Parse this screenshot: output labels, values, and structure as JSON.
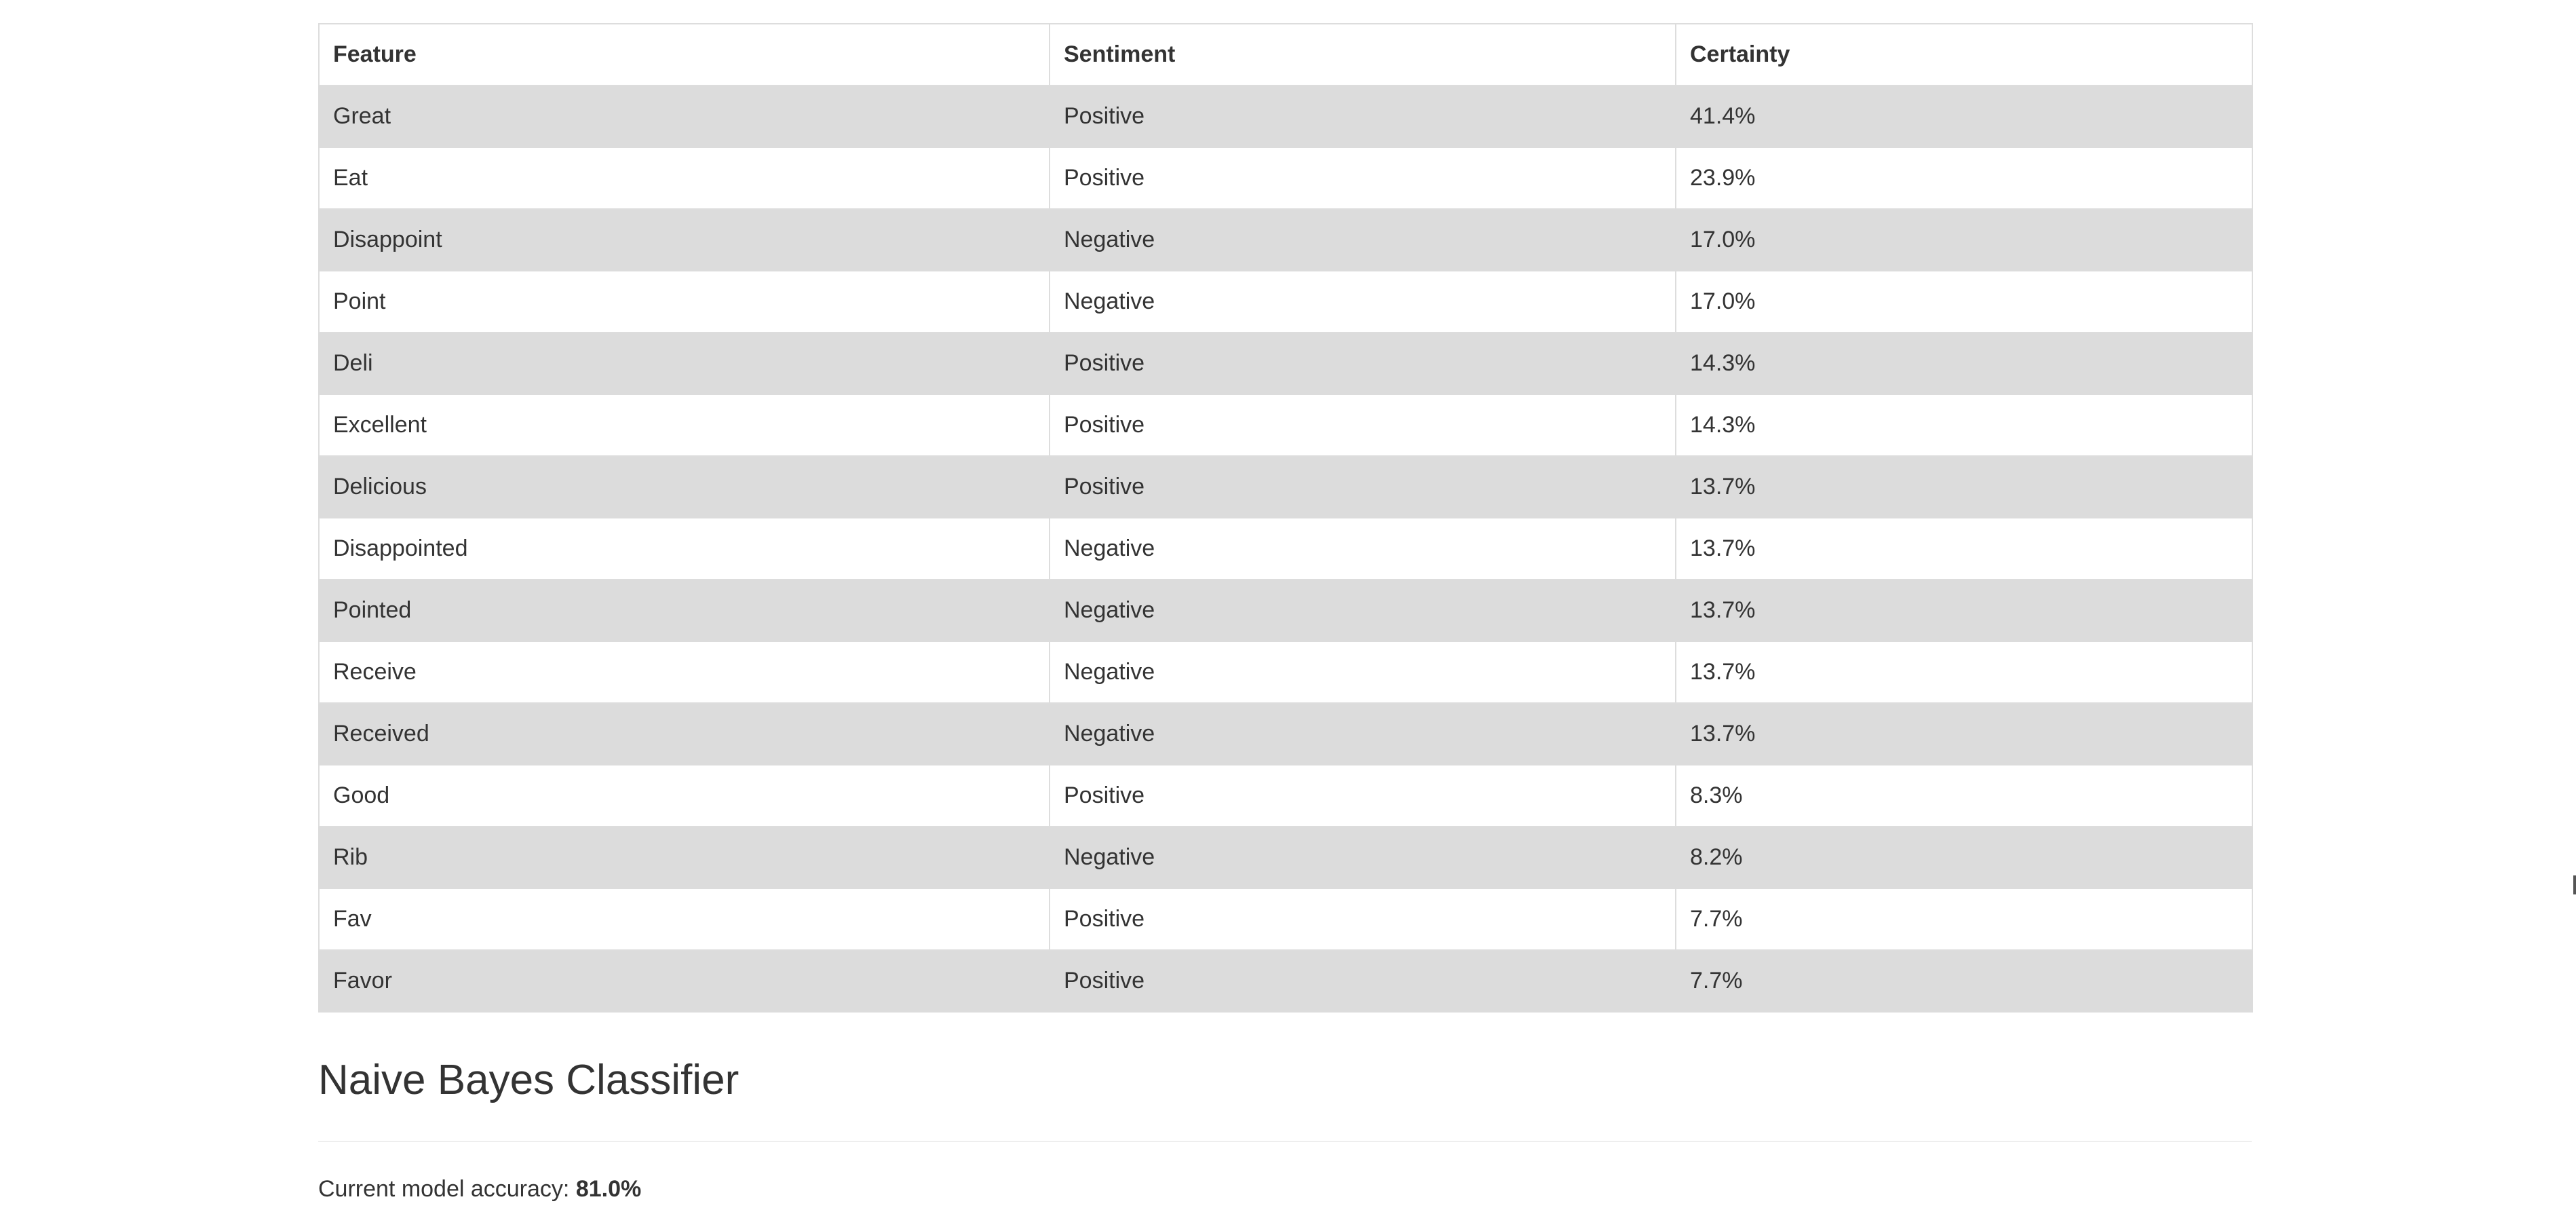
{
  "table": {
    "headers": [
      "Feature",
      "Sentiment",
      "Certainty"
    ],
    "rows": [
      [
        "Great",
        "Positive",
        "41.4%"
      ],
      [
        "Eat",
        "Positive",
        "23.9%"
      ],
      [
        "Disappoint",
        "Negative",
        "17.0%"
      ],
      [
        "Point",
        "Negative",
        "17.0%"
      ],
      [
        "Deli",
        "Positive",
        "14.3%"
      ],
      [
        "Excellent",
        "Positive",
        "14.3%"
      ],
      [
        "Delicious",
        "Positive",
        "13.7%"
      ],
      [
        "Disappointed",
        "Negative",
        "13.7%"
      ],
      [
        "Pointed",
        "Negative",
        "13.7%"
      ],
      [
        "Receive",
        "Negative",
        "13.7%"
      ],
      [
        "Received",
        "Negative",
        "13.7%"
      ],
      [
        "Good",
        "Positive",
        "8.3%"
      ],
      [
        "Rib",
        "Negative",
        "8.2%"
      ],
      [
        "Fav",
        "Positive",
        "7.7%"
      ],
      [
        "Favor",
        "Positive",
        "7.7%"
      ]
    ]
  },
  "classifier": {
    "title": "Naive Bayes Classifier",
    "accuracy_label": "Current model accuracy:",
    "accuracy_value": "81.0%"
  },
  "colors": {
    "striped_row": "#dcdcdc",
    "text": "#333333",
    "border": "#dddddd"
  }
}
